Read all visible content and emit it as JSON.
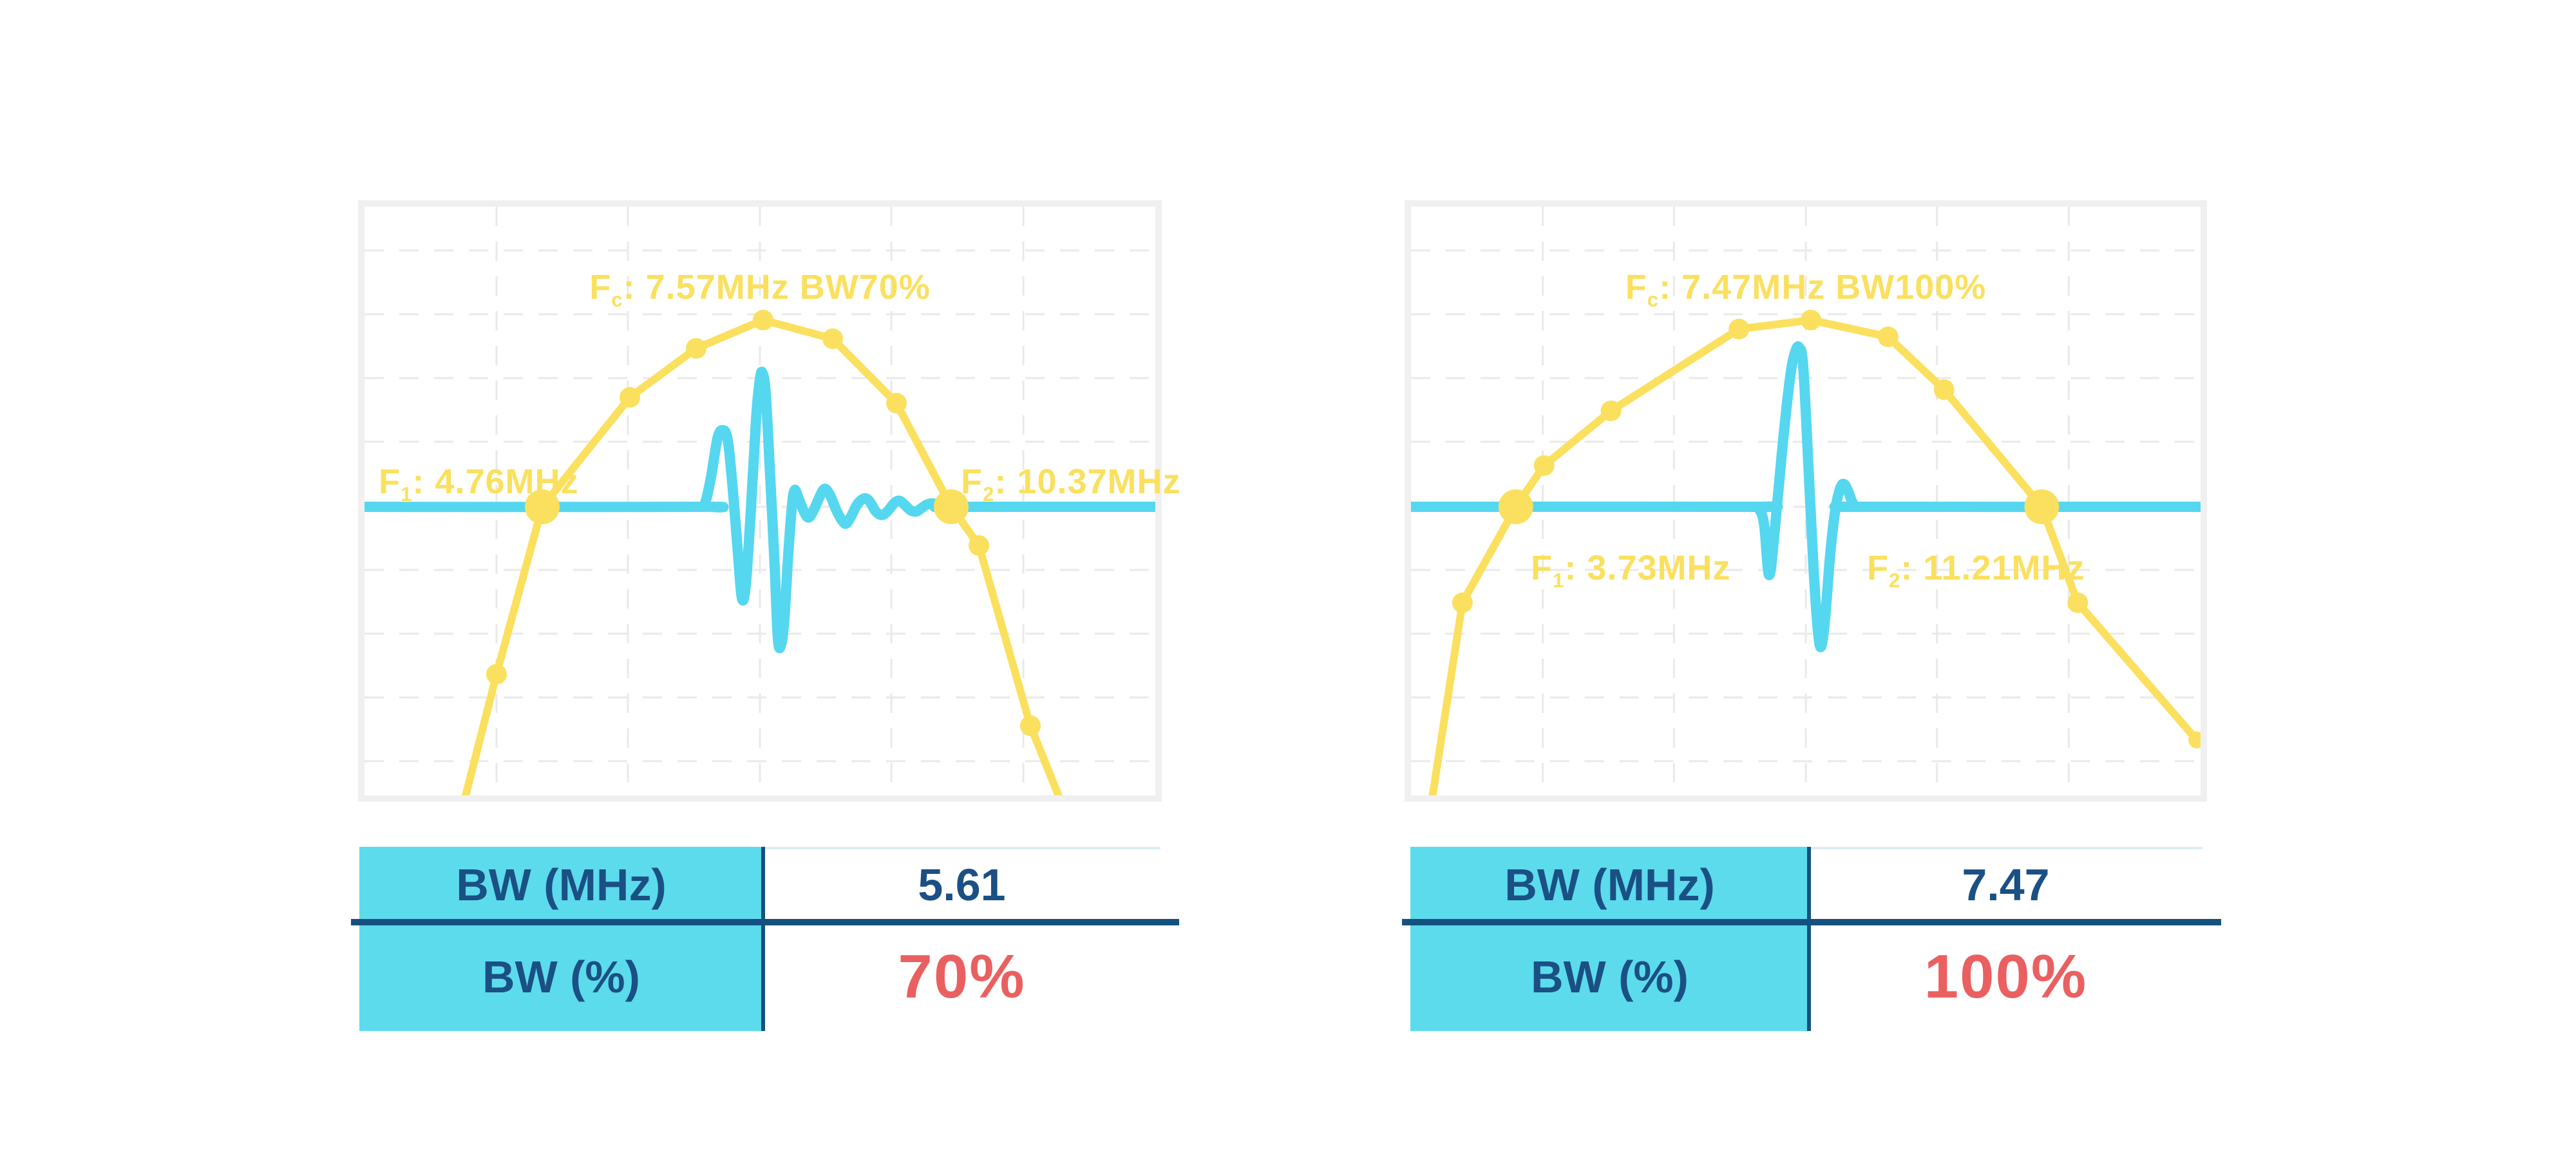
{
  "colors": {
    "yellow": "#FAE05E",
    "cyan": "#55D7EF",
    "navy": "#1A5083",
    "divider_navy": "#14517F",
    "red": "#EA6060",
    "table_cyan": "#5CDBED",
    "grid": "#E9E9E9",
    "chart_border": "#F0F0F0",
    "value_topline": "#D9EDF4",
    "background": "#FFFFFF"
  },
  "charts": [
    {
      "name": "narrowband-spectrum",
      "center_label": {
        "f": "F",
        "sub": "c",
        "rest": ": 7.57MHz BW70%"
      },
      "f1_label": {
        "f": "F",
        "sub": "1",
        "rest": ": 4.76MHz"
      },
      "f2_label": {
        "f": "F",
        "sub": "2",
        "rest": ": 10.37MHz"
      },
      "geometry": {
        "view": [
          1228,
          914
        ],
        "grid": {
          "vlines": [
            205,
            409,
            614,
            818,
            1023
          ],
          "hlines": [
            68,
            167,
            266,
            365,
            466,
            564,
            663,
            762,
            861
          ],
          "dash": "30 24",
          "width": 3
        },
        "spectrum_path": [
          [
            148,
            950
          ],
          [
            205,
            726
          ],
          [
            276,
            466
          ],
          [
            412,
            296
          ],
          [
            515,
            220
          ],
          [
            619,
            176
          ],
          [
            727,
            205
          ],
          [
            826,
            305
          ],
          [
            911,
            466
          ],
          [
            954,
            526
          ],
          [
            1034,
            806
          ],
          [
            1092,
            950
          ]
        ],
        "markers": [
          [
            205,
            726,
            16
          ],
          [
            276,
            466,
            27
          ],
          [
            412,
            296,
            16
          ],
          [
            515,
            220,
            16
          ],
          [
            619,
            176,
            16
          ],
          [
            727,
            205,
            16
          ],
          [
            826,
            305,
            16
          ],
          [
            911,
            466,
            27
          ],
          [
            954,
            526,
            16
          ],
          [
            1034,
            806,
            16
          ]
        ],
        "pulse_path": [
          [
            0,
            466
          ],
          [
            516,
            466
          ],
          [
            528,
            462
          ],
          [
            538,
            420
          ],
          [
            548,
            360
          ],
          [
            556,
            347
          ],
          [
            564,
            362
          ],
          [
            572,
            440
          ],
          [
            580,
            540
          ],
          [
            586,
            608
          ],
          [
            592,
            588
          ],
          [
            600,
            470
          ],
          [
            608,
            330
          ],
          [
            614,
            268
          ],
          [
            618,
            258
          ],
          [
            623,
            290
          ],
          [
            630,
            420
          ],
          [
            637,
            560
          ],
          [
            642,
            672
          ],
          [
            647,
            680
          ],
          [
            652,
            640
          ],
          [
            658,
            540
          ],
          [
            664,
            462
          ],
          [
            668,
            440
          ],
          [
            673,
            450
          ],
          [
            680,
            468
          ],
          [
            686,
            480
          ],
          [
            691,
            482
          ],
          [
            698,
            470
          ],
          [
            706,
            452
          ],
          [
            712,
            440
          ],
          [
            717,
            439
          ],
          [
            724,
            450
          ],
          [
            733,
            472
          ],
          [
            742,
            488
          ],
          [
            748,
            492
          ],
          [
            755,
            482
          ],
          [
            764,
            464
          ],
          [
            772,
            455
          ],
          [
            779,
            453
          ],
          [
            786,
            460
          ],
          [
            793,
            472
          ],
          [
            800,
            478
          ],
          [
            806,
            478
          ],
          [
            813,
            472
          ],
          [
            821,
            462
          ],
          [
            827,
            457
          ],
          [
            832,
            457
          ],
          [
            839,
            463
          ],
          [
            846,
            470
          ],
          [
            852,
            473
          ],
          [
            858,
            473
          ],
          [
            865,
            468
          ],
          [
            872,
            463
          ],
          [
            878,
            461
          ],
          [
            884,
            461
          ],
          [
            893,
            464
          ],
          [
            902,
            466
          ],
          [
            911,
            466
          ],
          [
            1228,
            466
          ]
        ],
        "stroke": {
          "spectrum": 12,
          "pulse": 16
        }
      }
    },
    {
      "name": "broadband-spectrum",
      "center_label": {
        "f": "F",
        "sub": "c",
        "rest": ": 7.47MHz BW100%"
      },
      "f1_label": {
        "f": "F",
        "sub": "1",
        "rest": ": 3.73MHz"
      },
      "f2_label": {
        "f": "F",
        "sub": "2",
        "rest": ": 11.21MHz"
      },
      "geometry": {
        "view": [
          1228,
          914
        ],
        "grid": {
          "vlines": [
            205,
            409,
            614,
            818,
            1023
          ],
          "hlines": [
            68,
            167,
            266,
            365,
            466,
            564,
            663,
            762,
            861
          ],
          "dash": "30 24",
          "width": 3
        },
        "spectrum_path": [
          [
            28,
            950
          ],
          [
            80,
            615
          ],
          [
            163,
            466
          ],
          [
            207,
            402
          ],
          [
            311,
            317
          ],
          [
            510,
            190
          ],
          [
            622,
            176
          ],
          [
            742,
            202
          ],
          [
            829,
            284
          ],
          [
            981,
            466
          ],
          [
            1037,
            615
          ],
          [
            1222,
            828
          ]
        ],
        "markers": [
          [
            80,
            615,
            16
          ],
          [
            163,
            466,
            27
          ],
          [
            207,
            402,
            16
          ],
          [
            311,
            317,
            16
          ],
          [
            510,
            190,
            16
          ],
          [
            622,
            176,
            16
          ],
          [
            742,
            202,
            16
          ],
          [
            829,
            284,
            16
          ],
          [
            981,
            466,
            27
          ],
          [
            1037,
            615,
            16
          ],
          [
            1222,
            828,
            13
          ]
        ],
        "pulse_path": [
          [
            0,
            466
          ],
          [
            528,
            466
          ],
          [
            540,
            468
          ],
          [
            549,
            492
          ],
          [
            557,
            572
          ],
          [
            566,
            500
          ],
          [
            578,
            370
          ],
          [
            590,
            262
          ],
          [
            598,
            224
          ],
          [
            604,
            219
          ],
          [
            610,
            248
          ],
          [
            618,
            400
          ],
          [
            626,
            560
          ],
          [
            633,
            660
          ],
          [
            638,
            683
          ],
          [
            644,
            640
          ],
          [
            652,
            540
          ],
          [
            660,
            470
          ],
          [
            668,
            436
          ],
          [
            674,
            431
          ],
          [
            680,
            442
          ],
          [
            686,
            458
          ],
          [
            692,
            465
          ],
          [
            700,
            466
          ],
          [
            1228,
            466
          ]
        ],
        "stroke": {
          "spectrum": 12,
          "pulse": 16
        }
      }
    }
  ],
  "tables": [
    {
      "rows": [
        {
          "label": "BW (MHz)",
          "value": "5.61"
        },
        {
          "label": "BW (%)",
          "value": "70%"
        }
      ]
    },
    {
      "rows": [
        {
          "label": "BW (MHz)",
          "value": "7.47"
        },
        {
          "label": "BW (%)",
          "value": "100%"
        }
      ]
    }
  ],
  "chart_data": [
    {
      "type": "line",
      "title": "Fc: 7.57MHz BW70%",
      "x_unit": "MHz",
      "grid": "dashed",
      "legend": false,
      "annotations": [
        "Fc: 7.57MHz BW70%",
        "F1: 4.76MHz",
        "F2: 10.37MHz"
      ],
      "fc_mhz": 7.57,
      "f1_mhz": 4.76,
      "f2_mhz": 10.37,
      "bw_mhz": 5.61,
      "bw_pct": 70,
      "series": [
        {
          "name": "frequency-spectrum",
          "color": "#FAE05E",
          "points_mhz_amplitude": [
            [
              4.13,
              0.21
            ],
            [
              4.76,
              0.49
            ],
            [
              5.97,
              0.68
            ],
            [
              6.88,
              0.76
            ],
            [
              7.79,
              0.81
            ],
            [
              8.74,
              0.78
            ],
            [
              9.62,
              0.67
            ],
            [
              10.37,
              0.49
            ],
            [
              10.75,
              0.42
            ],
            [
              11.46,
              0.12
            ]
          ],
          "note": "amplitude normalized 0-1; F1/F2 markers sit on -6 dB baseline (0.49)"
        },
        {
          "name": "pulse-waveform",
          "color": "#55D7EF",
          "description": "time-domain RF echo pulse with long ringing tail, drawn on the -6 dB baseline"
        }
      ]
    },
    {
      "type": "line",
      "title": "Fc: 7.47MHz BW100%",
      "x_unit": "MHz",
      "grid": "dashed",
      "legend": false,
      "annotations": [
        "Fc: 7.47MHz BW100%",
        "F1: 3.73MHz",
        "F2: 11.21MHz"
      ],
      "fc_mhz": 7.47,
      "f1_mhz": 3.73,
      "f2_mhz": 11.21,
      "bw_mhz": 7.47,
      "bw_pct": 100,
      "series": [
        {
          "name": "frequency-spectrum",
          "color": "#FAE05E",
          "points_mhz_amplitude": [
            [
              2.97,
              0.33
            ],
            [
              3.73,
              0.49
            ],
            [
              4.13,
              0.56
            ],
            [
              5.08,
              0.65
            ],
            [
              6.9,
              0.79
            ],
            [
              7.93,
              0.81
            ],
            [
              9.03,
              0.78
            ],
            [
              9.82,
              0.69
            ],
            [
              11.21,
              0.49
            ],
            [
              11.72,
              0.33
            ],
            [
              13.38,
              0.09
            ]
          ],
          "note": "amplitude normalized 0-1; F1/F2 markers sit on -6 dB baseline (0.49)"
        },
        {
          "name": "pulse-waveform",
          "color": "#55D7EF",
          "description": "short broadband time-domain pulse (single cycle), drawn on the -6 dB baseline"
        }
      ]
    }
  ]
}
